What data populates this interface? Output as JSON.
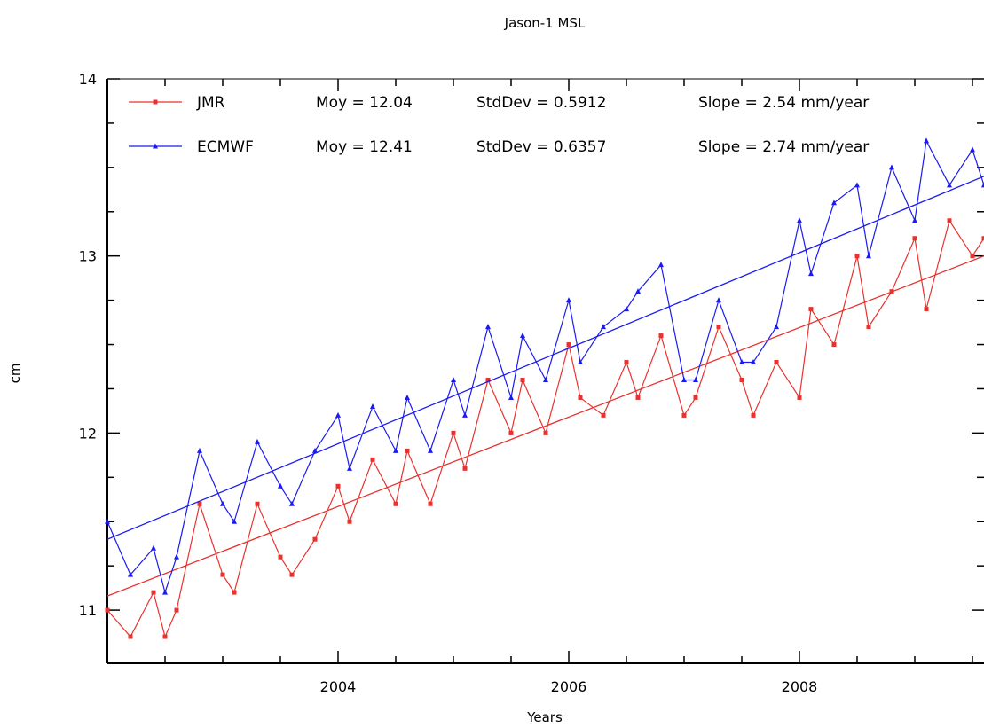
{
  "chart_data": {
    "type": "line",
    "title": "Jason-1 MSL",
    "xlabel": "Years",
    "ylabel": "cm",
    "xlim": [
      2002.0,
      2009.6
    ],
    "ylim": [
      10.7,
      14.0
    ],
    "x_ticks": [
      2004,
      2006,
      2008
    ],
    "y_ticks": [
      11,
      12,
      13,
      14
    ],
    "grid": false,
    "legend_position": "top-left",
    "series": [
      {
        "name": "JMR",
        "color": "#e8322f",
        "marker": "square",
        "mean_label": "Moy = 12.04",
        "std_label": "StdDev = 0.5912",
        "slope_label": "Slope = 2.54 mm/year",
        "trend": [
          [
            2002.0,
            11.08
          ],
          [
            2009.6,
            13.0
          ]
        ],
        "x": [
          2002.0,
          2002.2,
          2002.4,
          2002.5,
          2002.6,
          2002.8,
          2003.0,
          2003.1,
          2003.3,
          2003.5,
          2003.6,
          2003.8,
          2004.0,
          2004.1,
          2004.3,
          2004.5,
          2004.6,
          2004.8,
          2005.0,
          2005.1,
          2005.3,
          2005.5,
          2005.6,
          2005.8,
          2006.0,
          2006.1,
          2006.3,
          2006.5,
          2006.6,
          2006.8,
          2007.0,
          2007.1,
          2007.3,
          2007.5,
          2007.6,
          2007.8,
          2008.0,
          2008.1,
          2008.3,
          2008.5,
          2008.6,
          2008.8,
          2009.0,
          2009.1,
          2009.3,
          2009.5,
          2009.6
        ],
        "values": [
          11.0,
          10.85,
          11.1,
          10.85,
          11.0,
          11.6,
          11.2,
          11.1,
          11.6,
          11.3,
          11.2,
          11.4,
          11.7,
          11.5,
          11.85,
          11.6,
          11.9,
          11.6,
          12.0,
          11.8,
          12.3,
          12.0,
          12.3,
          12.0,
          12.5,
          12.2,
          12.1,
          12.4,
          12.2,
          12.55,
          12.1,
          12.2,
          12.6,
          12.3,
          12.1,
          12.4,
          12.2,
          12.7,
          12.5,
          13.0,
          12.6,
          12.8,
          13.1,
          12.7,
          13.2,
          13.0,
          13.1
        ]
      },
      {
        "name": "ECMWF",
        "color": "#1b1bf0",
        "marker": "triangle",
        "mean_label": "Moy = 12.41",
        "std_label": "StdDev = 0.6357",
        "slope_label": "Slope = 2.74 mm/year",
        "trend": [
          [
            2002.0,
            11.4
          ],
          [
            2009.6,
            13.45
          ]
        ],
        "x": [
          2002.0,
          2002.2,
          2002.4,
          2002.5,
          2002.6,
          2002.8,
          2003.0,
          2003.1,
          2003.3,
          2003.5,
          2003.6,
          2003.8,
          2004.0,
          2004.1,
          2004.3,
          2004.5,
          2004.6,
          2004.8,
          2005.0,
          2005.1,
          2005.3,
          2005.5,
          2005.6,
          2005.8,
          2006.0,
          2006.1,
          2006.3,
          2006.5,
          2006.6,
          2006.8,
          2007.0,
          2007.1,
          2007.3,
          2007.5,
          2007.6,
          2007.8,
          2008.0,
          2008.1,
          2008.3,
          2008.5,
          2008.6,
          2008.8,
          2009.0,
          2009.1,
          2009.3,
          2009.5,
          2009.6
        ],
        "values": [
          11.5,
          11.2,
          11.35,
          11.1,
          11.3,
          11.9,
          11.6,
          11.5,
          11.95,
          11.7,
          11.6,
          11.9,
          12.1,
          11.8,
          12.15,
          11.9,
          12.2,
          11.9,
          12.3,
          12.1,
          12.6,
          12.2,
          12.55,
          12.3,
          12.75,
          12.4,
          12.6,
          12.7,
          12.8,
          12.95,
          12.3,
          12.3,
          12.75,
          12.4,
          12.4,
          12.6,
          13.2,
          12.9,
          13.3,
          13.4,
          13.0,
          13.5,
          13.2,
          13.65,
          13.4,
          13.6,
          13.4
        ]
      }
    ]
  }
}
